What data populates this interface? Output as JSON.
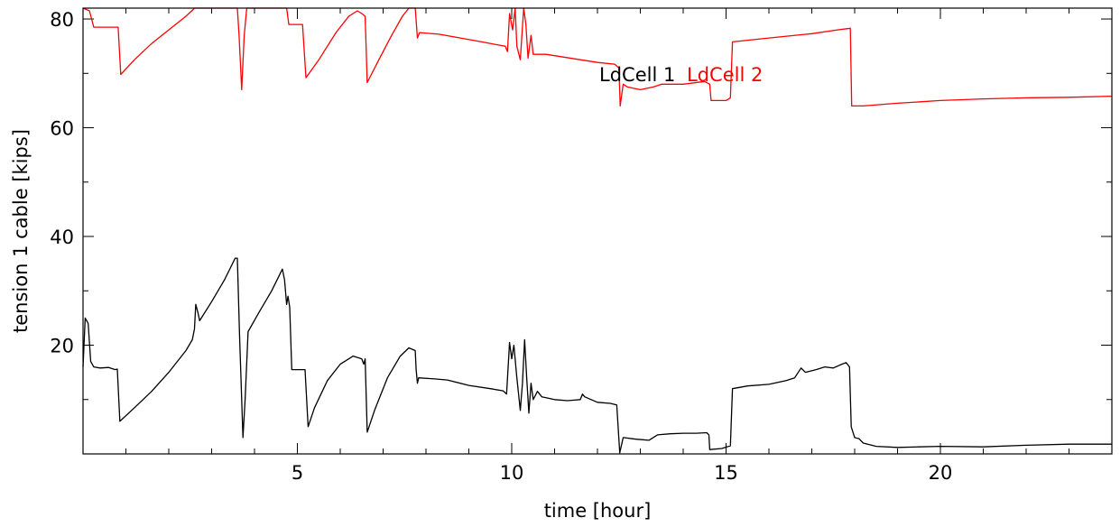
{
  "chart_data": {
    "type": "line",
    "xlabel": "time [hour]",
    "ylabel": "tension 1 cable [kips]",
    "xlim": [
      0,
      24
    ],
    "ylim": [
      0,
      82
    ],
    "xticks": [
      5,
      10,
      15,
      20
    ],
    "yticks": [
      20,
      40,
      60,
      80
    ],
    "xminor_step": 1,
    "yminor_step": 10,
    "grid": false,
    "legend_position": "upper-center, inline",
    "series": [
      {
        "name": "LdCell 1",
        "color": "#000000",
        "points": [
          [
            0.0,
            16.0
          ],
          [
            0.05,
            25.0
          ],
          [
            0.12,
            24.0
          ],
          [
            0.18,
            17.0
          ],
          [
            0.25,
            16.0
          ],
          [
            0.4,
            15.8
          ],
          [
            0.6,
            15.9
          ],
          [
            0.75,
            15.5
          ],
          [
            0.8,
            15.6
          ],
          [
            0.86,
            6.0
          ],
          [
            1.2,
            8.5
          ],
          [
            1.6,
            11.5
          ],
          [
            2.0,
            15.0
          ],
          [
            2.4,
            19.0
          ],
          [
            2.55,
            21.0
          ],
          [
            2.6,
            23.0
          ],
          [
            2.63,
            27.5
          ],
          [
            2.68,
            26.0
          ],
          [
            2.72,
            24.5
          ],
          [
            3.0,
            28.0
          ],
          [
            3.3,
            32.0
          ],
          [
            3.55,
            36.0
          ],
          [
            3.6,
            36.0
          ],
          [
            3.65,
            22.0
          ],
          [
            3.7,
            10.0
          ],
          [
            3.73,
            3.0
          ],
          [
            3.78,
            10.0
          ],
          [
            3.85,
            22.5
          ],
          [
            4.1,
            26.0
          ],
          [
            4.4,
            30.0
          ],
          [
            4.65,
            34.0
          ],
          [
            4.7,
            32.0
          ],
          [
            4.75,
            27.5
          ],
          [
            4.78,
            29.0
          ],
          [
            4.82,
            27.0
          ],
          [
            4.87,
            15.5
          ],
          [
            5.0,
            15.5
          ],
          [
            5.18,
            15.5
          ],
          [
            5.25,
            5.0
          ],
          [
            5.4,
            8.5
          ],
          [
            5.7,
            13.5
          ],
          [
            6.0,
            16.5
          ],
          [
            6.3,
            18.0
          ],
          [
            6.5,
            17.5
          ],
          [
            6.55,
            16.5
          ],
          [
            6.58,
            17.5
          ],
          [
            6.63,
            4.0
          ],
          [
            6.8,
            8.0
          ],
          [
            7.1,
            14.0
          ],
          [
            7.4,
            18.0
          ],
          [
            7.6,
            19.5
          ],
          [
            7.75,
            19.0
          ],
          [
            7.77,
            15.5
          ],
          [
            7.8,
            13.0
          ],
          [
            7.83,
            14.0
          ],
          [
            8.2,
            13.8
          ],
          [
            8.5,
            13.6
          ],
          [
            9.0,
            12.6
          ],
          [
            9.5,
            12.0
          ],
          [
            9.8,
            11.6
          ],
          [
            9.88,
            11.0
          ],
          [
            9.95,
            20.5
          ],
          [
            10.0,
            17.5
          ],
          [
            10.05,
            20.0
          ],
          [
            10.12,
            14.0
          ],
          [
            10.2,
            8.0
          ],
          [
            10.25,
            13.0
          ],
          [
            10.3,
            21.0
          ],
          [
            10.35,
            14.0
          ],
          [
            10.4,
            7.5
          ],
          [
            10.45,
            13.0
          ],
          [
            10.5,
            10.0
          ],
          [
            10.6,
            11.5
          ],
          [
            10.7,
            10.5
          ],
          [
            11.0,
            10.0
          ],
          [
            11.3,
            9.8
          ],
          [
            11.6,
            10.0
          ],
          [
            11.65,
            11.0
          ],
          [
            11.7,
            10.5
          ],
          [
            12.0,
            9.5
          ],
          [
            12.3,
            9.3
          ],
          [
            12.45,
            9.0
          ],
          [
            12.52,
            0.2
          ],
          [
            12.6,
            3.0
          ],
          [
            12.9,
            2.7
          ],
          [
            13.2,
            2.5
          ],
          [
            13.4,
            3.5
          ],
          [
            13.7,
            3.7
          ],
          [
            14.0,
            3.8
          ],
          [
            14.3,
            3.8
          ],
          [
            14.55,
            3.9
          ],
          [
            14.6,
            3.5
          ],
          [
            14.62,
            0.8
          ],
          [
            14.9,
            1.0
          ],
          [
            15.1,
            1.5
          ],
          [
            15.15,
            12.0
          ],
          [
            15.5,
            12.5
          ],
          [
            16.0,
            12.8
          ],
          [
            16.4,
            13.5
          ],
          [
            16.6,
            14.0
          ],
          [
            16.75,
            15.8
          ],
          [
            16.85,
            15.0
          ],
          [
            17.1,
            15.5
          ],
          [
            17.3,
            16.0
          ],
          [
            17.5,
            15.8
          ],
          [
            17.7,
            16.5
          ],
          [
            17.8,
            16.8
          ],
          [
            17.88,
            16.0
          ],
          [
            17.92,
            5.0
          ],
          [
            18.0,
            3.0
          ],
          [
            18.1,
            2.8
          ],
          [
            18.2,
            2.0
          ],
          [
            18.5,
            1.4
          ],
          [
            19.0,
            1.2
          ],
          [
            19.5,
            1.3
          ],
          [
            20.0,
            1.4
          ],
          [
            21.0,
            1.3
          ],
          [
            22.0,
            1.6
          ],
          [
            23.0,
            1.8
          ],
          [
            24.0,
            1.8
          ]
        ]
      },
      {
        "name": "LdCell 2",
        "color": "#ff0000",
        "points": [
          [
            0.0,
            82.0
          ],
          [
            0.15,
            81.5
          ],
          [
            0.25,
            78.5
          ],
          [
            0.5,
            78.5
          ],
          [
            0.82,
            78.5
          ],
          [
            0.88,
            69.8
          ],
          [
            1.2,
            72.5
          ],
          [
            1.6,
            75.5
          ],
          [
            2.0,
            78.0
          ],
          [
            2.4,
            80.5
          ],
          [
            2.55,
            81.6
          ],
          [
            2.6,
            82.0
          ],
          [
            3.0,
            82.0
          ],
          [
            3.6,
            82.0
          ],
          [
            3.64,
            77.0
          ],
          [
            3.7,
            67.0
          ],
          [
            3.76,
            77.0
          ],
          [
            3.82,
            82.0
          ],
          [
            4.3,
            82.0
          ],
          [
            4.75,
            82.0
          ],
          [
            4.8,
            79.0
          ],
          [
            5.0,
            79.0
          ],
          [
            5.12,
            79.0
          ],
          [
            5.2,
            69.2
          ],
          [
            5.5,
            72.5
          ],
          [
            5.9,
            77.5
          ],
          [
            6.2,
            80.5
          ],
          [
            6.4,
            81.5
          ],
          [
            6.5,
            81.0
          ],
          [
            6.58,
            80.5
          ],
          [
            6.63,
            68.3
          ],
          [
            6.9,
            72.5
          ],
          [
            7.2,
            77.0
          ],
          [
            7.45,
            80.5
          ],
          [
            7.6,
            82.0
          ],
          [
            7.75,
            82.0
          ],
          [
            7.8,
            76.5
          ],
          [
            7.85,
            77.5
          ],
          [
            8.3,
            77.2
          ],
          [
            8.8,
            76.5
          ],
          [
            9.3,
            75.8
          ],
          [
            9.7,
            75.2
          ],
          [
            9.85,
            75.0
          ],
          [
            9.9,
            74.0
          ],
          [
            9.95,
            81.0
          ],
          [
            10.02,
            78.0
          ],
          [
            10.08,
            82.0
          ],
          [
            10.12,
            75.0
          ],
          [
            10.2,
            72.5
          ],
          [
            10.28,
            82.0
          ],
          [
            10.33,
            79.0
          ],
          [
            10.38,
            72.8
          ],
          [
            10.45,
            77.0
          ],
          [
            10.5,
            73.5
          ],
          [
            10.8,
            73.5
          ],
          [
            11.2,
            73.0
          ],
          [
            11.6,
            72.5
          ],
          [
            12.0,
            72.0
          ],
          [
            12.4,
            71.7
          ],
          [
            12.5,
            71.0
          ],
          [
            12.53,
            64.0
          ],
          [
            12.6,
            68.0
          ],
          [
            12.7,
            67.5
          ],
          [
            13.0,
            67.0
          ],
          [
            13.3,
            67.5
          ],
          [
            13.5,
            68.0
          ],
          [
            14.0,
            68.0
          ],
          [
            14.5,
            68.5
          ],
          [
            14.62,
            68.0
          ],
          [
            14.65,
            65.0
          ],
          [
            15.0,
            65.0
          ],
          [
            15.1,
            65.5
          ],
          [
            15.15,
            75.8
          ],
          [
            16.0,
            76.5
          ],
          [
            17.0,
            77.3
          ],
          [
            17.6,
            78.0
          ],
          [
            17.9,
            78.3
          ],
          [
            17.93,
            64.0
          ],
          [
            18.2,
            64.0
          ],
          [
            19.0,
            64.5
          ],
          [
            20.0,
            65.0
          ],
          [
            21.0,
            65.3
          ],
          [
            22.0,
            65.5
          ],
          [
            23.0,
            65.6
          ],
          [
            24.0,
            65.8
          ]
        ]
      }
    ]
  }
}
